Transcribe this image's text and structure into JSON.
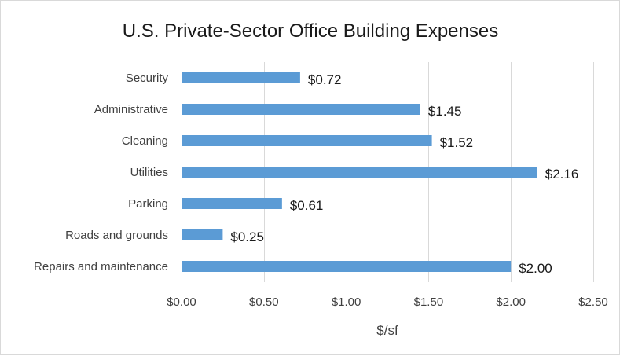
{
  "chart_data": {
    "type": "bar",
    "orientation": "horizontal",
    "title": "U.S. Private-Sector Office Building Expenses",
    "xlabel": "$/sf",
    "ylabel": "",
    "categories": [
      "Security",
      "Administrative",
      "Cleaning",
      "Utilities",
      "Parking",
      "Roads and grounds",
      "Repairs and maintenance"
    ],
    "values": [
      0.72,
      1.45,
      1.52,
      2.16,
      0.61,
      0.25,
      2.0
    ],
    "data_labels": [
      "$0.72",
      "$1.45",
      "$1.52",
      "$2.16",
      "$0.61",
      "$0.25",
      "$2.00"
    ],
    "xlim": [
      0,
      2.5
    ],
    "x_ticks": [
      0,
      0.5,
      1.0,
      1.5,
      2.0,
      2.5
    ],
    "x_tick_labels": [
      "$0.00",
      "$0.50",
      "$1.00",
      "$1.50",
      "$2.00",
      "$2.50"
    ],
    "grid": true,
    "legend": "none",
    "colors": {
      "bar": "#5b9bd5",
      "grid": "#d9d9d9",
      "text": "#404040"
    }
  }
}
